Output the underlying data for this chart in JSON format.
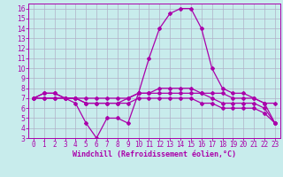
{
  "xlabel": "Windchill (Refroidissement éolien,°C)",
  "x": [
    0,
    1,
    2,
    3,
    4,
    5,
    6,
    7,
    8,
    9,
    10,
    11,
    12,
    13,
    14,
    15,
    16,
    17,
    18,
    19,
    20,
    21,
    22,
    23
  ],
  "line1": [
    7,
    7.5,
    7.5,
    7,
    7,
    7,
    7,
    7,
    7,
    7,
    7.5,
    7.5,
    7.5,
    7.5,
    7.5,
    7.5,
    7.5,
    7.5,
    7.5,
    7,
    7,
    7,
    6.5,
    6.5
  ],
  "line2": [
    7,
    7,
    7,
    7,
    6.5,
    4.5,
    3,
    5,
    5,
    4.5,
    7.5,
    7.5,
    8,
    8,
    8,
    8,
    7.5,
    7,
    6.5,
    6.5,
    6.5,
    6.5,
    6,
    4.5
  ],
  "line3": [
    7,
    7.5,
    7.5,
    7,
    7,
    6.5,
    6.5,
    6.5,
    6.5,
    7,
    7.5,
    11,
    14,
    15.5,
    16,
    16,
    14,
    10,
    8,
    7.5,
    7.5,
    7,
    6.5,
    4.5
  ],
  "line4": [
    7,
    7,
    7,
    7,
    7,
    6.5,
    6.5,
    6.5,
    6.5,
    6.5,
    7,
    7,
    7,
    7,
    7,
    7,
    6.5,
    6.5,
    6,
    6,
    6,
    6,
    5.5,
    4.5
  ],
  "ylim": [
    3,
    16.5
  ],
  "xlim": [
    -0.5,
    23.5
  ],
  "yticks": [
    3,
    4,
    5,
    6,
    7,
    8,
    9,
    10,
    11,
    12,
    13,
    14,
    15,
    16
  ],
  "xticks": [
    0,
    1,
    2,
    3,
    4,
    5,
    6,
    7,
    8,
    9,
    10,
    11,
    12,
    13,
    14,
    15,
    16,
    17,
    18,
    19,
    20,
    21,
    22,
    23
  ],
  "line_color": "#aa00aa",
  "bg_color": "#c8ecec",
  "grid_color": "#b0b0c8",
  "marker": "D",
  "marker_size": 2,
  "lw": 0.9,
  "tick_fontsize": 5.5,
  "xlabel_fontsize": 6.0
}
